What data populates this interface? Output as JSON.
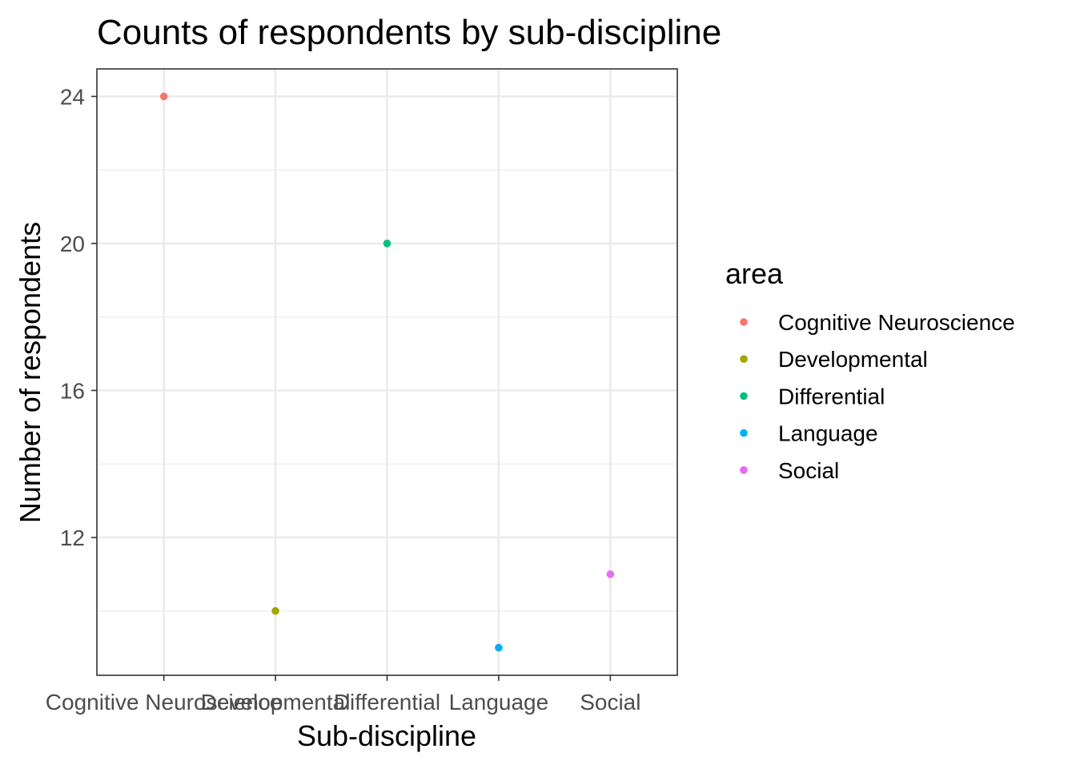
{
  "chart_data": {
    "type": "scatter",
    "title": "Counts of respondents by sub-discipline",
    "xlabel": "Sub-discipline",
    "ylabel": "Number of respondents",
    "categories": [
      "Cognitive Neuroscience",
      "Developmental",
      "Differential",
      "Language",
      "Social"
    ],
    "values": [
      24,
      10,
      20,
      9,
      11
    ],
    "colors": [
      "#F8766D",
      "#A3A500",
      "#00BF7D",
      "#00B0F6",
      "#E76BF3"
    ],
    "ylim": [
      8.25,
      24.75
    ],
    "yticks": [
      12,
      16,
      20,
      24
    ],
    "yminor": [
      10,
      14,
      18,
      22
    ],
    "grid": true,
    "theme": "bw",
    "legend": {
      "title": "area",
      "position": "right",
      "entries": [
        "Cognitive Neuroscience",
        "Developmental",
        "Differential",
        "Language",
        "Social"
      ]
    }
  }
}
